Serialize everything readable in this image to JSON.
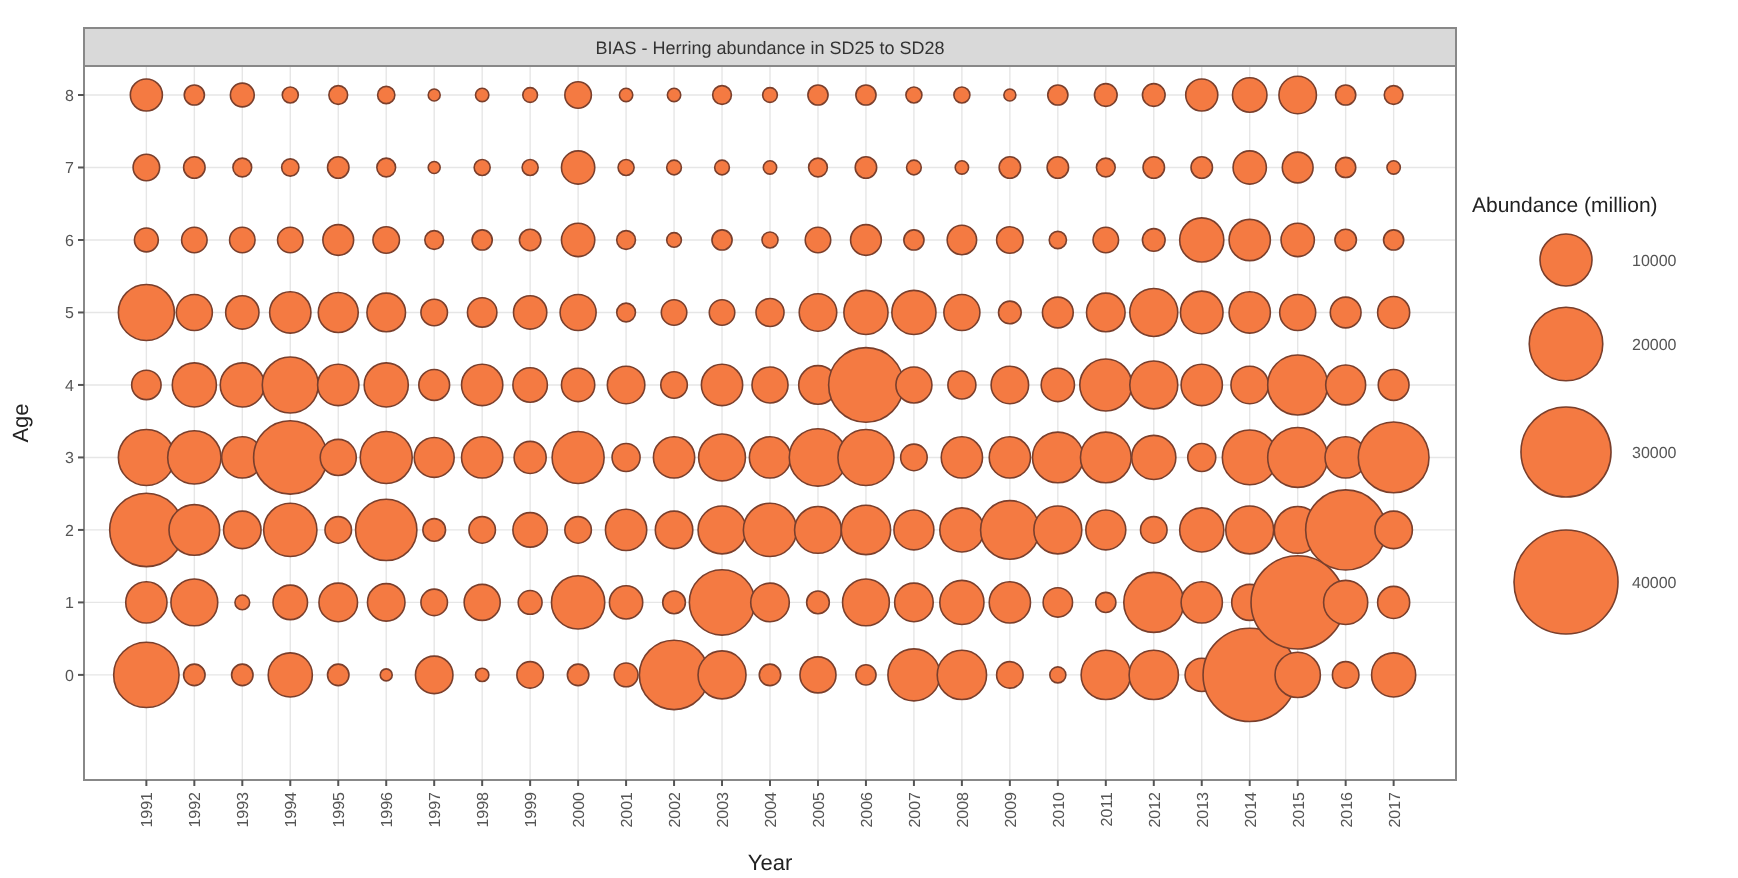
{
  "chart_data": {
    "type": "bubble",
    "title": "BIAS - Herring abundance in SD25 to SD28",
    "xlabel": "Year",
    "ylabel": "Age",
    "legend_title": "Abundance (million)",
    "grid": true,
    "x": [
      1991,
      1992,
      1993,
      1994,
      1995,
      1996,
      1997,
      1998,
      1999,
      2000,
      2001,
      2002,
      2003,
      2004,
      2005,
      2006,
      2007,
      2008,
      2009,
      2010,
      2011,
      2012,
      2013,
      2014,
      2015,
      2016,
      2017
    ],
    "xlim": [
      1989.7,
      2018.3
    ],
    "xticks": [
      1991,
      1992,
      1993,
      1994,
      1995,
      1996,
      1997,
      1998,
      1999,
      2000,
      2001,
      2002,
      2003,
      2004,
      2005,
      2006,
      2007,
      2008,
      2009,
      2010,
      2011,
      2012,
      2013,
      2014,
      2015,
      2016,
      2017
    ],
    "ylim": [
      -1.45,
      8.4
    ],
    "yticks": [
      0,
      1,
      2,
      3,
      4,
      5,
      6,
      7,
      8
    ],
    "size_legend": [
      10000,
      20000,
      30000,
      40000
    ],
    "series": [
      {
        "color": "#f47a42",
        "values": [
          0,
          0,
          0,
          0,
          0,
          0,
          0,
          0,
          0,
          0,
          0,
          0,
          0,
          0,
          0,
          0,
          0,
          0,
          0,
          0,
          0,
          0,
          0,
          0,
          0,
          0,
          0
        ],
        "sizes": [
          15800,
          1700,
          1700,
          7200,
          1700,
          530,
          5200,
          660,
          2600,
          1700,
          2100,
          17800,
          8500,
          1700,
          4800,
          1500,
          10000,
          9000,
          2600,
          950,
          9000,
          9000,
          4100,
          32200,
          7600,
          2600,
          7200
        ]
      },
      {
        "color": "#f47a42",
        "values": [
          1,
          1,
          1,
          1,
          1,
          1,
          1,
          1,
          1,
          1,
          1,
          1,
          1,
          1,
          1,
          1,
          1,
          1,
          1,
          1,
          1,
          1,
          1,
          1,
          1,
          1,
          1
        ],
        "sizes": [
          6300,
          8100,
          800,
          4400,
          5500,
          5200,
          2600,
          4800,
          2100,
          10500,
          4100,
          1900,
          15800,
          5500,
          1900,
          8100,
          5500,
          7200,
          6300,
          3200,
          1500,
          13300,
          6300,
          4800,
          32200,
          7200,
          3800
        ]
      },
      {
        "color": "#f47a42",
        "values": [
          2,
          2,
          2,
          2,
          2,
          2,
          2,
          2,
          2,
          2,
          2,
          2,
          2,
          2,
          2,
          2,
          2,
          2,
          2,
          2,
          2,
          2,
          2,
          2,
          2,
          2,
          2
        ],
        "sizes": [
          19900,
          9500,
          5200,
          10500,
          2600,
          13900,
          1900,
          2600,
          4400,
          2600,
          6300,
          5200,
          8500,
          10500,
          8100,
          9000,
          5900,
          7200,
          12700,
          8500,
          5900,
          2600,
          7200,
          8500,
          8100,
          23700,
          5200
        ]
      },
      {
        "color": "#f47a42",
        "values": [
          3,
          3,
          3,
          3,
          3,
          3,
          3,
          3,
          3,
          3,
          3,
          3,
          3,
          3,
          3,
          3,
          3,
          3,
          3,
          3,
          3,
          3,
          3,
          3,
          3,
          3,
          3
        ],
        "sizes": [
          11600,
          10500,
          6300,
          19900,
          4800,
          10000,
          5900,
          6300,
          3800,
          10000,
          2900,
          6300,
          8100,
          6300,
          12200,
          11600,
          2600,
          6300,
          6300,
          9500,
          9500,
          7200,
          2900,
          11100,
          13300,
          6300,
          18500
        ]
      },
      {
        "color": "#f47a42",
        "values": [
          4,
          4,
          4,
          4,
          4,
          4,
          4,
          4,
          4,
          4,
          4,
          4,
          4,
          4,
          4,
          4,
          4,
          4,
          4,
          4,
          4,
          4,
          4,
          4,
          4,
          4,
          4
        ],
        "sizes": [
          3200,
          7200,
          7200,
          11600,
          6300,
          7200,
          3500,
          6300,
          4400,
          4100,
          5200,
          2600,
          6300,
          4800,
          5500,
          20600,
          4800,
          2900,
          5200,
          4100,
          10000,
          8500,
          6300,
          5200,
          13300,
          5900,
          3500
        ]
      },
      {
        "color": "#f47a42",
        "values": [
          5,
          5,
          5,
          5,
          5,
          5,
          5,
          5,
          5,
          5,
          5,
          5,
          5,
          5,
          5,
          5,
          5,
          5,
          5,
          5,
          5,
          5,
          5,
          5,
          5,
          5,
          5
        ],
        "sizes": [
          11600,
          4800,
          4100,
          6300,
          5900,
          5500,
          2600,
          3200,
          4100,
          4800,
          1300,
          2400,
          2400,
          2900,
          5200,
          7200,
          7200,
          4800,
          1900,
          3500,
          5500,
          8500,
          6700,
          6300,
          4800,
          3500,
          3800
        ]
      },
      {
        "color": "#f47a42",
        "values": [
          6,
          6,
          6,
          6,
          6,
          6,
          6,
          6,
          6,
          6,
          6,
          6,
          6,
          6,
          6,
          6,
          6,
          6,
          6,
          6,
          6,
          6,
          6,
          6,
          6,
          6,
          6
        ],
        "sizes": [
          2100,
          2400,
          2400,
          2400,
          3500,
          2600,
          1300,
          1500,
          1700,
          4100,
          1300,
          800,
          1500,
          950,
          2400,
          3500,
          1500,
          3200,
          2600,
          1100,
          2400,
          1900,
          7200,
          6300,
          4100,
          1700,
          1500
        ]
      },
      {
        "color": "#f47a42",
        "values": [
          7,
          7,
          7,
          7,
          7,
          7,
          7,
          7,
          7,
          7,
          7,
          7,
          7,
          7,
          7,
          7,
          7,
          7,
          7,
          7,
          7,
          7,
          7,
          7,
          7,
          7,
          7
        ],
        "sizes": [
          2600,
          1700,
          1300,
          1100,
          1700,
          1300,
          530,
          950,
          950,
          4100,
          950,
          800,
          800,
          660,
          1300,
          1700,
          800,
          660,
          1700,
          1700,
          1300,
          1700,
          1700,
          4100,
          3500,
          1500,
          660
        ]
      },
      {
        "color": "#f47a42",
        "values": [
          8,
          8,
          8,
          8,
          8,
          8,
          8,
          8,
          8,
          8,
          8,
          8,
          8,
          8,
          8,
          8,
          8,
          8,
          8,
          8,
          8,
          8,
          8,
          8,
          8,
          8,
          8
        ],
        "sizes": [
          3800,
          1500,
          2100,
          950,
          1300,
          1100,
          530,
          660,
          800,
          2600,
          660,
          660,
          1300,
          800,
          1500,
          1500,
          950,
          950,
          530,
          1500,
          1900,
          1900,
          3800,
          4400,
          5200,
          1500,
          1300
        ]
      }
    ]
  }
}
